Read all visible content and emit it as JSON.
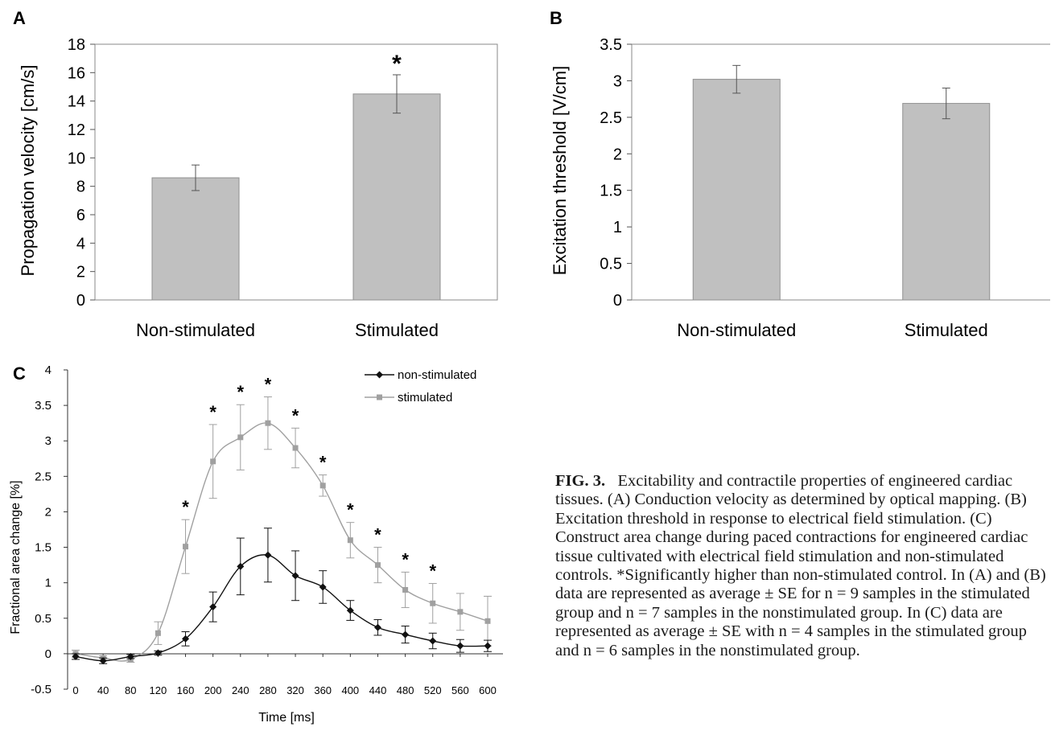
{
  "panels": [
    {
      "label": "A",
      "chart_data": {
        "type": "bar",
        "categories": [
          "Non-stimulated",
          "Stimulated"
        ],
        "values": [
          8.6,
          14.5
        ],
        "errors": [
          0.9,
          1.35
        ],
        "significance": [
          "",
          "*"
        ],
        "xlabel": "",
        "ylabel": "Propagation velocity [cm/s]",
        "ylim": [
          0,
          18
        ],
        "yticks": [
          "0",
          "2",
          "4",
          "6",
          "8",
          "10",
          "12",
          "14",
          "16",
          "18"
        ],
        "bar_color": "#c0c0c0",
        "grid": false
      }
    },
    {
      "label": "B",
      "chart_data": {
        "type": "bar",
        "categories": [
          "Non-stimulated",
          "Stimulated"
        ],
        "values": [
          3.02,
          2.69
        ],
        "errors": [
          0.19,
          0.21
        ],
        "significance": [
          "",
          ""
        ],
        "xlabel": "",
        "ylabel": "Excitation threshold [V/cm]",
        "ylim": [
          0,
          3.5
        ],
        "yticks": [
          "0",
          "0.5",
          "1",
          "1.5",
          "2",
          "2.5",
          "3",
          "3.5"
        ],
        "bar_color": "#c0c0c0",
        "grid": false
      }
    },
    {
      "label": "C",
      "chart_data": {
        "type": "line",
        "x": [
          0,
          40,
          80,
          120,
          160,
          200,
          240,
          280,
          320,
          360,
          400,
          440,
          480,
          520,
          560,
          600
        ],
        "xticks": [
          "0",
          "40",
          "80",
          "120",
          "160",
          "200",
          "240",
          "280",
          "320",
          "360",
          "400",
          "440",
          "480",
          "520",
          "560",
          "600"
        ],
        "xlabel": "Time [ms]",
        "ylabel": "Fractional area change [%]",
        "ylim": [
          -0.5,
          4
        ],
        "yticks": [
          "-0.5",
          "0",
          "0.5",
          "1",
          "1.5",
          "2",
          "2.5",
          "3",
          "3.5",
          "4"
        ],
        "legend_position": "top-right",
        "grid": false,
        "series": [
          {
            "name": "non-stimulated",
            "color": "#111111",
            "marker": "diamond",
            "values": [
              -0.04,
              -0.1,
              -0.04,
              0.01,
              0.21,
              0.66,
              1.23,
              1.39,
              1.1,
              0.94,
              0.61,
              0.37,
              0.27,
              0.18,
              0.11,
              0.11
            ],
            "errors": [
              0.04,
              0.04,
              0.03,
              0.03,
              0.1,
              0.21,
              0.4,
              0.38,
              0.35,
              0.23,
              0.14,
              0.11,
              0.12,
              0.11,
              0.09,
              0.08
            ]
          },
          {
            "name": "stimulated",
            "color": "#a0a0a0",
            "marker": "square",
            "values": [
              0.0,
              -0.06,
              -0.08,
              0.29,
              1.51,
              2.71,
              3.05,
              3.25,
              2.9,
              2.37,
              1.6,
              1.25,
              0.9,
              0.71,
              0.59,
              0.46
            ],
            "errors": [
              0.05,
              0.03,
              0.04,
              0.16,
              0.38,
              0.52,
              0.46,
              0.37,
              0.28,
              0.15,
              0.25,
              0.25,
              0.25,
              0.28,
              0.26,
              0.35
            ]
          }
        ],
        "significance_marks": [
          "",
          "",
          "",
          "",
          "*",
          "*",
          "*",
          "*",
          "*",
          "*",
          "*",
          "*",
          "*",
          "*",
          "",
          ""
        ]
      }
    }
  ],
  "caption": {
    "label": "FIG. 3.",
    "text": "Excitability and contractile properties of engineered cardiac tissues. (A) Conduction velocity as determined by optical mapping. (B) Excitation threshold in response to electrical field stimulation. (C) Construct area change during paced contractions for engineered cardiac tissue cultivated with electrical field stimulation and non-stimulated controls. *Significantly higher than non-stimulated control. In (A) and (B) data are represented as average ± SE for n = 9 samples in the stimulated group and n = 7 samples in the nonstimulated group. In (C) data are represented as average ± SE with n = 4 samples in the stimulated group and n = 6 samples in the nonstimulated group."
  }
}
